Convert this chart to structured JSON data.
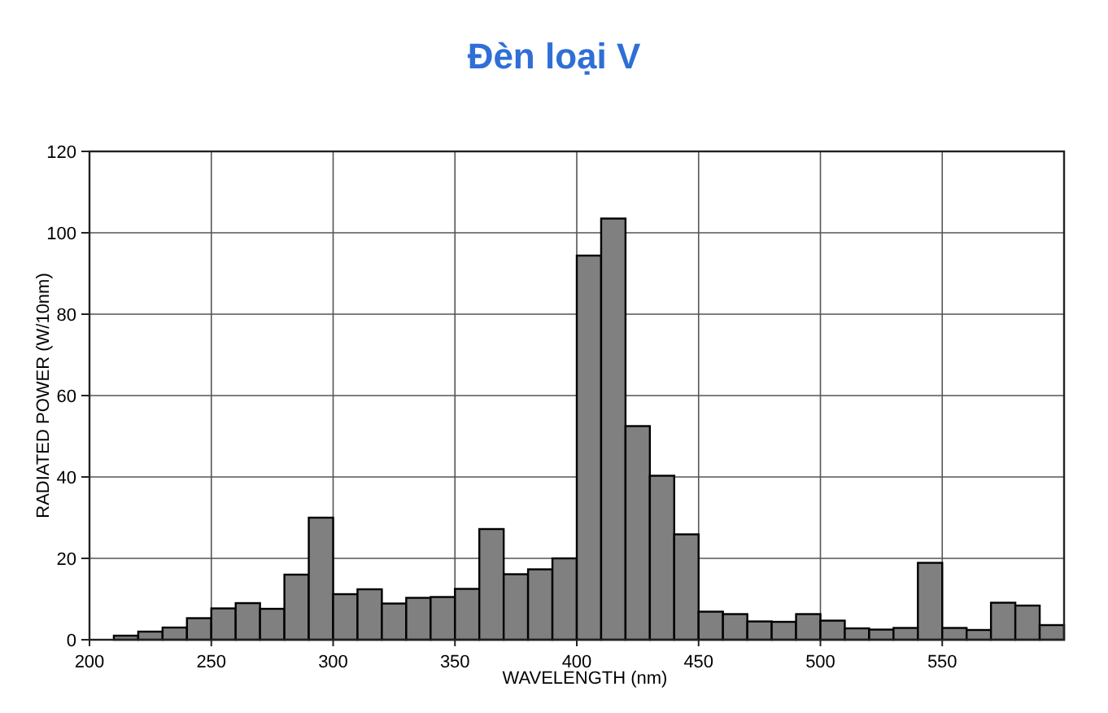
{
  "chart_data": {
    "type": "histogram",
    "title": "Đèn loại V",
    "xlabel": "WAVELENGTH (nm)",
    "ylabel": "RADIATED POWER (W/10nm)",
    "color": "#808080",
    "bins": [
      200,
      210,
      220,
      230,
      240,
      250,
      260,
      270,
      280,
      290,
      300,
      310,
      320,
      330,
      340,
      350,
      360,
      370,
      380,
      390,
      400,
      410,
      420,
      430,
      440,
      450,
      460,
      470,
      480,
      490,
      500,
      510,
      520,
      530,
      540,
      550,
      560,
      570,
      580,
      590,
      600
    ],
    "values": [
      0,
      1,
      2,
      3,
      5.3,
      7.7,
      9,
      7.6,
      16,
      30,
      11.2,
      12.4,
      8.9,
      10.3,
      10.5,
      12.5,
      27.2,
      16.1,
      17.3,
      20,
      94.4,
      103.5,
      52.5,
      40.3,
      25.9,
      6.9,
      6.3,
      4.5,
      4.4,
      6.3,
      4.7,
      2.8,
      2.5,
      2.9,
      18.9,
      2.9,
      2.4,
      9.1,
      8.4,
      3.6
    ],
    "xlim": [
      200,
      600
    ],
    "xticks": [
      200,
      250,
      300,
      350,
      400,
      450,
      500,
      550
    ],
    "ylim": [
      0,
      120
    ],
    "yticks": [
      0,
      20,
      40,
      60,
      80,
      100,
      120
    ],
    "grid": true
  }
}
